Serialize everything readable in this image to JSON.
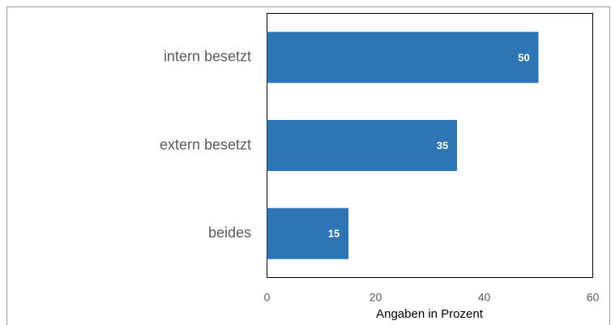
{
  "chart_data": {
    "type": "bar",
    "orientation": "horizontal",
    "categories": [
      "intern besetzt",
      "extern besetzt",
      "beides"
    ],
    "values": [
      50,
      35,
      15
    ],
    "color": "#2e75b6",
    "xlim": [
      0,
      60
    ],
    "xticks": [
      0,
      20,
      40,
      60
    ],
    "xlabel": "Angaben in Prozent",
    "data_labels": true
  }
}
